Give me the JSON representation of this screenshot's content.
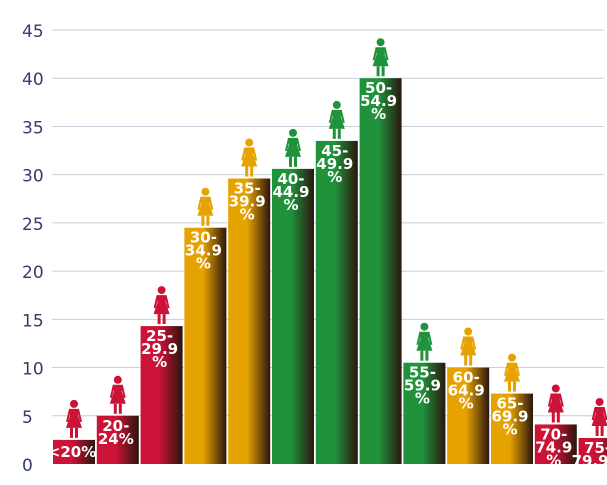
{
  "colors": {
    "red": "#cc1236",
    "orange": "#e6a200",
    "green": "#20923c",
    "grid": "#c6cfdc",
    "axis_text": "#2f3f66"
  },
  "icon": "woman-figure-icon",
  "chart_data": {
    "type": "bar",
    "title": "",
    "xlabel": "",
    "ylabel": "",
    "ylim": [
      0,
      45
    ],
    "yticks": [
      0,
      5,
      10,
      15,
      20,
      25,
      30,
      35,
      40,
      45
    ],
    "grid": true,
    "legend": "none",
    "categories": [
      {
        "label_lines": [
          "<20%"
        ],
        "color": "red"
      },
      {
        "label_lines": [
          "20-",
          "24%"
        ],
        "color": "red"
      },
      {
        "label_lines": [
          "25-",
          "29.9",
          "%"
        ],
        "color": "red"
      },
      {
        "label_lines": [
          "30-",
          "34.9",
          "%"
        ],
        "color": "orange"
      },
      {
        "label_lines": [
          "35-",
          "39.9",
          "%"
        ],
        "color": "orange"
      },
      {
        "label_lines": [
          "40-",
          "44.9",
          "%"
        ],
        "color": "green"
      },
      {
        "label_lines": [
          "45-",
          "49.9",
          "%"
        ],
        "color": "green"
      },
      {
        "label_lines": [
          "50-",
          "54.9",
          "%"
        ],
        "color": "green"
      },
      {
        "label_lines": [
          "55-",
          "59.9",
          "%"
        ],
        "color": "green"
      },
      {
        "label_lines": [
          "60-",
          "64.9",
          "%"
        ],
        "color": "orange"
      },
      {
        "label_lines": [
          "65-",
          "69.9",
          "%"
        ],
        "color": "orange"
      },
      {
        "label_lines": [
          "70-",
          "74.9",
          "%"
        ],
        "color": "red"
      },
      {
        "label_lines": [
          "75-",
          "79.9%"
        ],
        "color": "red"
      }
    ],
    "values": [
      2.5,
      5,
      14.3,
      24.5,
      29.6,
      30.6,
      33.5,
      40,
      10.5,
      10,
      7.3,
      4.1,
      2.7
    ]
  }
}
